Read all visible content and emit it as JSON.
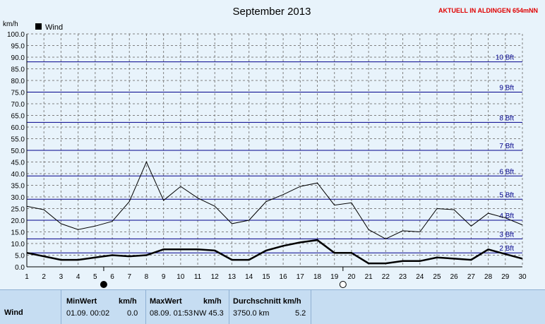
{
  "header": {
    "title": "September 2013",
    "station": "AKTUELL IN ALDINGEN 654mNN"
  },
  "chart_data": {
    "type": "line",
    "title": "September 2013",
    "ylabel": "km/h",
    "ylim": [
      0,
      100
    ],
    "y_ticks": [
      "0.0",
      "5.0",
      "10.0",
      "15.0",
      "20.0",
      "25.0",
      "30.0",
      "35.0",
      "40.0",
      "45.0",
      "50.0",
      "55.0",
      "60.0",
      "65.0",
      "70.0",
      "75.0",
      "80.0",
      "85.0",
      "90.0",
      "95.0",
      "100.0"
    ],
    "x": [
      1,
      2,
      3,
      4,
      5,
      6,
      7,
      8,
      9,
      10,
      11,
      12,
      13,
      14,
      15,
      16,
      17,
      18,
      19,
      20,
      21,
      22,
      23,
      24,
      25,
      26,
      27,
      28,
      29,
      30
    ],
    "legend": "Wind",
    "series": [
      {
        "name": "Wind",
        "values": [
          6,
          4.5,
          3,
          3,
          4,
          5,
          4.5,
          5,
          7.5,
          7.5,
          7.5,
          7,
          3,
          3,
          7,
          9,
          10.5,
          11.5,
          6,
          6,
          1.5,
          1.5,
          2.5,
          2.5,
          4,
          3.5,
          3,
          7.5,
          5.5,
          3.5
        ]
      },
      {
        "values": [
          26,
          24.5,
          18.5,
          16,
          17.5,
          19.5,
          28,
          45,
          28.5,
          34.5,
          29.5,
          26,
          18.5,
          20,
          28,
          31,
          34.5,
          36,
          26.5,
          27.5,
          16,
          12,
          15.5,
          15,
          25,
          24.5,
          17.5,
          23,
          21,
          18
        ]
      }
    ],
    "beaufort_lines": [
      {
        "label": "2 Bft",
        "value": 6
      },
      {
        "label": "3 Bft",
        "value": 12
      },
      {
        "label": "4 Bft",
        "value": 20
      },
      {
        "label": "5 Bft",
        "value": 29
      },
      {
        "label": "6 Bft",
        "value": 39
      },
      {
        "label": "7 Bft",
        "value": 50
      },
      {
        "label": "8 Bft",
        "value": 62
      },
      {
        "label": "9 Bft",
        "value": 75
      },
      {
        "label": "10 Bft",
        "value": 88
      }
    ],
    "moon_phases": [
      {
        "day": 5.5,
        "phase": "new-moon"
      },
      {
        "day": 19.5,
        "phase": "full-moon"
      }
    ],
    "grid": true,
    "colors": {
      "series": "#000000",
      "beaufort": "#00008b",
      "grid": "#808080",
      "plot_bg": "#e8f3fb"
    }
  },
  "stats": {
    "row_label": "Wind",
    "min_header": "MinWert",
    "min_unit": "km/h",
    "min_date": "01.09.  00:02",
    "min_value": "0.0",
    "max_header": "MaxWert",
    "max_unit": "km/h",
    "max_date": "08.09.  01:53",
    "max_value": "NW 45.3",
    "avg_header": "Durchschnitt km/h",
    "avg_distance": "3750.0 km",
    "avg_value": "5.2"
  }
}
